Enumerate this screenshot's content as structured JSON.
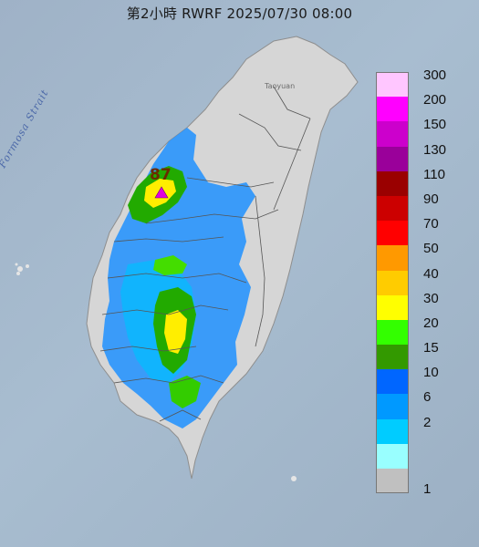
{
  "title": "第2小時  RWRF 2025/07/30 08:00",
  "map_labels": {
    "strait": "Formosa Strait",
    "city": "Taoyuan"
  },
  "peak": {
    "value": "87",
    "marker_color": "#e000e0"
  },
  "legend": {
    "items": [
      {
        "label": "300",
        "color": "#ffc6ff"
      },
      {
        "label": "200",
        "color": "#ff00ff"
      },
      {
        "label": "150",
        "color": "#cc00cc"
      },
      {
        "label": "130",
        "color": "#9a009a"
      },
      {
        "label": "110",
        "color": "#9a0000"
      },
      {
        "label": "90",
        "color": "#cc0000"
      },
      {
        "label": "70",
        "color": "#ff0000"
      },
      {
        "label": "50",
        "color": "#ff9900"
      },
      {
        "label": "40",
        "color": "#ffcc00"
      },
      {
        "label": "30",
        "color": "#ffff00"
      },
      {
        "label": "20",
        "color": "#33ff00"
      },
      {
        "label": "15",
        "color": "#339900"
      },
      {
        "label": "10",
        "color": "#0066ff"
      },
      {
        "label": "6",
        "color": "#0099ff"
      },
      {
        "label": "2",
        "color": "#00ccff"
      },
      {
        "label": "",
        "color": "#99ffff"
      },
      {
        "label": "",
        "color": "#c0c0c0"
      }
    ],
    "lower_labels": [
      "1"
    ]
  }
}
